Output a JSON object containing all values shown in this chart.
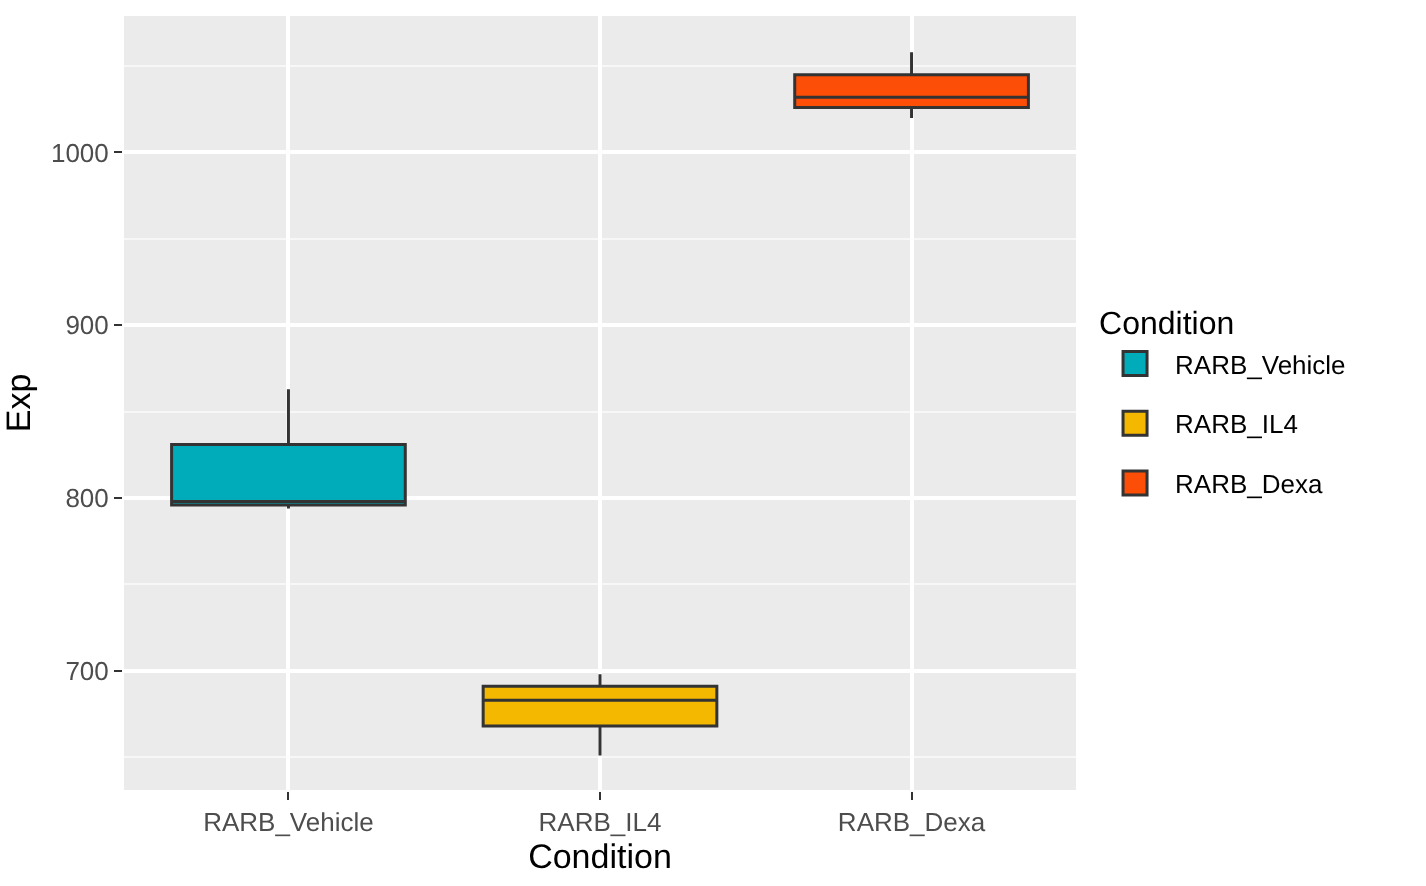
{
  "chart_data": {
    "type": "box",
    "xlabel": "Condition",
    "ylabel": "Exp",
    "legend_title": "Condition",
    "categories": [
      "RARB_Vehicle",
      "RARB_IL4",
      "RARB_Dexa"
    ],
    "series": [
      {
        "name": "RARB_Vehicle",
        "color": "#00acb9",
        "boxes": [
          {
            "low": 794,
            "q1": 796,
            "median": 798,
            "q3": 831,
            "high": 863
          },
          null,
          null
        ]
      },
      {
        "name": "RARB_IL4",
        "color": "#f5b800",
        "boxes": [
          null,
          {
            "low": 651,
            "q1": 668,
            "median": 683,
            "q3": 691,
            "high": 698
          },
          null
        ]
      },
      {
        "name": "RARB_Dexa",
        "color": "#fc4e07",
        "boxes": [
          null,
          null,
          {
            "low": 1020,
            "q1": 1026,
            "median": 1032,
            "q3": 1045,
            "high": 1058
          }
        ]
      }
    ],
    "ylim": [
      631,
      1079
    ],
    "yticks": [
      700,
      800,
      900,
      1000
    ],
    "grid": true,
    "legend": "right"
  }
}
